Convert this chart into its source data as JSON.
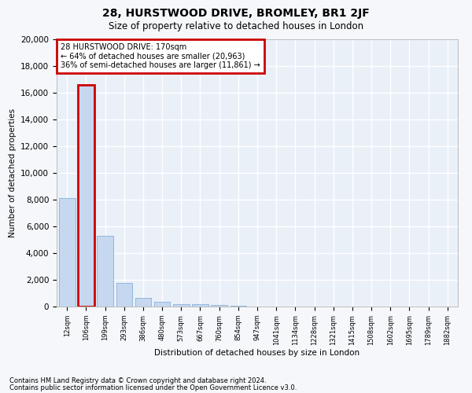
{
  "title": "28, HURSTWOOD DRIVE, BROMLEY, BR1 2JF",
  "subtitle": "Size of property relative to detached houses in London",
  "xlabel": "Distribution of detached houses by size in London",
  "ylabel": "Number of detached properties",
  "footnote1": "Contains HM Land Registry data © Crown copyright and database right 2024.",
  "footnote2": "Contains public sector information licensed under the Open Government Licence v3.0.",
  "annotation_line1": "28 HURSTWOOD DRIVE: 170sqm",
  "annotation_line2": "← 64% of detached houses are smaller (20,963)",
  "annotation_line3": "36% of semi-detached houses are larger (11,861) →",
  "bar_labels": [
    "12sqm",
    "106sqm",
    "199sqm",
    "293sqm",
    "386sqm",
    "480sqm",
    "573sqm",
    "667sqm",
    "760sqm",
    "854sqm",
    "947sqm",
    "1041sqm",
    "1134sqm",
    "1228sqm",
    "1321sqm",
    "1415sqm",
    "1508sqm",
    "1602sqm",
    "1695sqm",
    "1789sqm",
    "1882sqm"
  ],
  "bar_values": [
    8100,
    16600,
    5300,
    1750,
    650,
    350,
    200,
    150,
    100,
    50,
    20,
    0,
    0,
    0,
    0,
    0,
    0,
    0,
    0,
    0,
    0
  ],
  "bar_color": "#c5d8f0",
  "bar_edge_color": "#88b0d8",
  "highlight_bar_index": 1,
  "highlight_bar_edge_color": "#cc0000",
  "ylim": [
    0,
    20000
  ],
  "yticks": [
    0,
    2000,
    4000,
    6000,
    8000,
    10000,
    12000,
    14000,
    16000,
    18000,
    20000
  ],
  "bg_color": "#eaf0f8",
  "grid_color": "#ffffff",
  "annotation_box_color": "#cc0000",
  "property_bar_index": 1
}
